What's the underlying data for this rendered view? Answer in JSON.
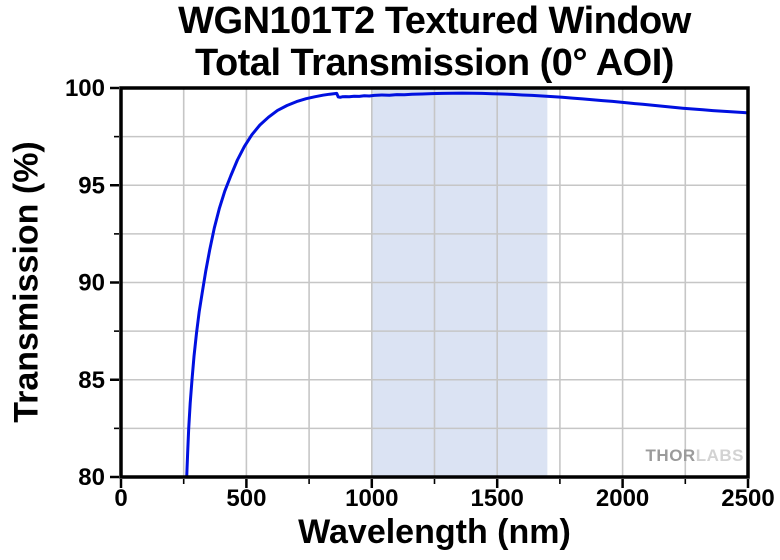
{
  "chart": {
    "title_line1": "WGN101T2 Textured Window",
    "title_line2": "Total Transmission (0° AOI)",
    "watermark_part1": "THOR",
    "watermark_part2": "LABS"
  },
  "chart_data": {
    "type": "line",
    "title": "WGN101T2 Textured Window Total Transmission (0° AOI)",
    "xlabel": "Wavelength (nm)",
    "ylabel": "Transmission (%)",
    "xlim": [
      0,
      2500
    ],
    "ylim": [
      80,
      100
    ],
    "x_major_ticks": [
      0,
      500,
      1000,
      1500,
      2000,
      2500
    ],
    "x_minor_step": 250,
    "y_major_ticks": [
      80,
      85,
      90,
      95,
      100
    ],
    "y_minor_step": 2.5,
    "grid": true,
    "grid_color": "#c6c6c6",
    "frame_color": "#000000",
    "background_color": "#ffffff",
    "legend": "none",
    "highlight_band": {
      "x_start": 1000,
      "x_end": 1700,
      "color": "#dbe3f3"
    },
    "series": [
      {
        "name": "Total Transmission (0° AOI)",
        "color": "#0010e0",
        "points": [
          [
            262,
            80.0
          ],
          [
            266,
            81.3
          ],
          [
            270,
            82.5
          ],
          [
            276,
            83.8
          ],
          [
            283,
            85.0
          ],
          [
            291,
            86.2
          ],
          [
            301,
            87.4
          ],
          [
            312,
            88.5
          ],
          [
            324,
            89.5
          ],
          [
            338,
            90.6
          ],
          [
            354,
            91.7
          ],
          [
            372,
            92.8
          ],
          [
            392,
            93.8
          ],
          [
            414,
            94.7
          ],
          [
            438,
            95.5
          ],
          [
            464,
            96.3
          ],
          [
            492,
            97.0
          ],
          [
            522,
            97.6
          ],
          [
            554,
            98.1
          ],
          [
            588,
            98.5
          ],
          [
            624,
            98.85
          ],
          [
            662,
            99.1
          ],
          [
            700,
            99.3
          ],
          [
            738,
            99.45
          ],
          [
            772,
            99.55
          ],
          [
            805,
            99.63
          ],
          [
            832,
            99.68
          ],
          [
            852,
            99.71
          ],
          [
            860,
            99.72
          ],
          [
            866,
            99.54
          ],
          [
            874,
            99.52
          ],
          [
            882,
            99.55
          ],
          [
            895,
            99.56
          ],
          [
            910,
            99.55
          ],
          [
            930,
            99.58
          ],
          [
            950,
            99.57
          ],
          [
            970,
            99.6
          ],
          [
            990,
            99.59
          ],
          [
            1010,
            99.62
          ],
          [
            1040,
            99.64
          ],
          [
            1070,
            99.63
          ],
          [
            1100,
            99.66
          ],
          [
            1130,
            99.65
          ],
          [
            1160,
            99.68
          ],
          [
            1200,
            99.69
          ],
          [
            1240,
            99.71
          ],
          [
            1280,
            99.72
          ],
          [
            1320,
            99.73
          ],
          [
            1360,
            99.74
          ],
          [
            1400,
            99.73
          ],
          [
            1440,
            99.72
          ],
          [
            1480,
            99.7
          ],
          [
            1520,
            99.69
          ],
          [
            1560,
            99.67
          ],
          [
            1600,
            99.64
          ],
          [
            1640,
            99.62
          ],
          [
            1680,
            99.59
          ],
          [
            1720,
            99.56
          ],
          [
            1760,
            99.52
          ],
          [
            1800,
            99.48
          ],
          [
            1840,
            99.44
          ],
          [
            1880,
            99.4
          ],
          [
            1920,
            99.35
          ],
          [
            1960,
            99.31
          ],
          [
            2000,
            99.26
          ],
          [
            2040,
            99.21
          ],
          [
            2080,
            99.16
          ],
          [
            2120,
            99.11
          ],
          [
            2160,
            99.06
          ],
          [
            2200,
            99.01
          ],
          [
            2240,
            98.96
          ],
          [
            2280,
            98.92
          ],
          [
            2320,
            98.88
          ],
          [
            2360,
            98.84
          ],
          [
            2400,
            98.8
          ],
          [
            2440,
            98.77
          ],
          [
            2480,
            98.74
          ],
          [
            2500,
            98.72
          ]
        ]
      }
    ]
  }
}
